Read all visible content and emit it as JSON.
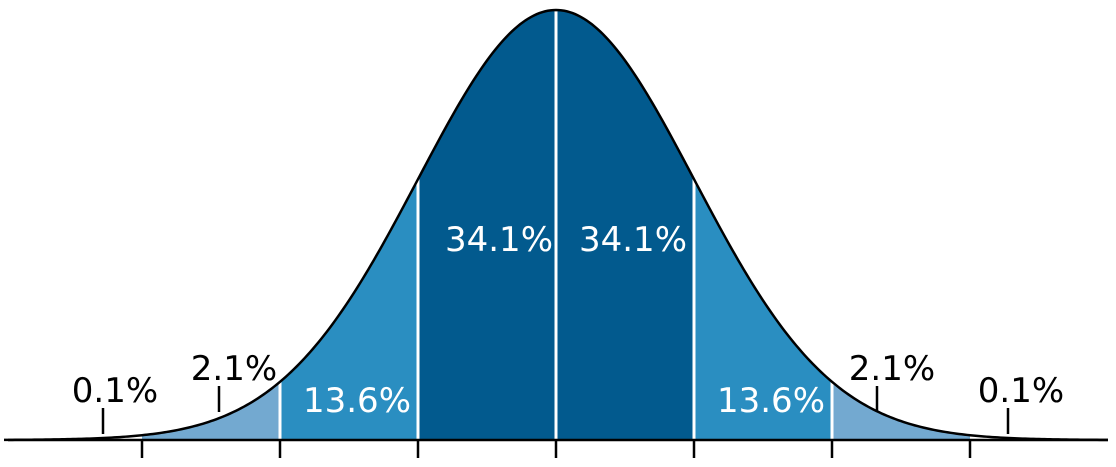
{
  "chart_data": {
    "type": "area",
    "title": "",
    "xlabel": "",
    "ylabel": "",
    "xlim": [
      -4,
      4
    ],
    "distribution": "normal",
    "mean": 0,
    "sd": 1,
    "x_ticks": [
      -3,
      -2,
      -1,
      0,
      1,
      2,
      3
    ],
    "x_tick_labels": [],
    "bands": [
      {
        "from": -3,
        "to": -2,
        "percent": "2.1%",
        "color": "#73a9d0"
      },
      {
        "from": -2,
        "to": -1,
        "percent": "13.6%",
        "color": "#2a8ec1"
      },
      {
        "from": -1,
        "to": 0,
        "percent": "34.1%",
        "color": "#025a8e"
      },
      {
        "from": 0,
        "to": 1,
        "percent": "34.1%",
        "color": "#025a8e"
      },
      {
        "from": 1,
        "to": 2,
        "percent": "13.6%",
        "color": "#2a8ec1"
      },
      {
        "from": 2,
        "to": 3,
        "percent": "2.1%",
        "color": "#73a9d0"
      }
    ],
    "tail_labels": [
      {
        "side": "left",
        "percent": "0.1%"
      },
      {
        "side": "right",
        "percent": "0.1%"
      }
    ],
    "colors": {
      "curve": "#000000",
      "dividers": "#ffffff"
    }
  }
}
